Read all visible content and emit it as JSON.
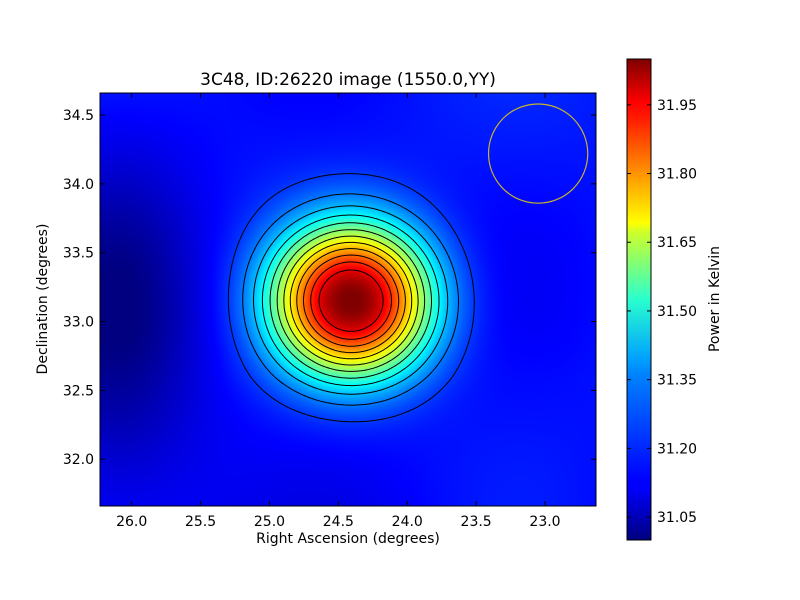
{
  "chart_data": {
    "type": "heatmap",
    "title": "3C48, ID:26220 image (1550.0,YY)",
    "xlabel": "Right Ascension (degrees)",
    "ylabel": "Declination (degrees)",
    "xlim": [
      26.23,
      22.63
    ],
    "ylim": [
      31.66,
      34.66
    ],
    "x_ticks": [
      "26.0",
      "25.5",
      "25.0",
      "24.5",
      "24.0",
      "23.5",
      "23.0"
    ],
    "y_ticks": [
      "32.0",
      "32.5",
      "33.0",
      "33.5",
      "34.0",
      "34.5"
    ],
    "colorbar": {
      "label": "Power in Kelvin",
      "range": [
        31.0,
        32.05
      ],
      "ticks": [
        "31.05",
        "31.20",
        "31.35",
        "31.50",
        "31.65",
        "31.80",
        "31.95"
      ],
      "colormap": "jet"
    },
    "peak": {
      "ra": 24.4,
      "dec": 33.15,
      "value": 32.03
    },
    "background_level": 31.15,
    "minimum_region": {
      "ra": 26.1,
      "dec": 33.0,
      "value": 31.02
    },
    "beam_circle": {
      "ra": 23.05,
      "dec": 34.22,
      "radius_deg": 0.36,
      "color": "#c8b428"
    },
    "contours": {
      "color": "#000000",
      "count": 12
    },
    "grid": false
  }
}
